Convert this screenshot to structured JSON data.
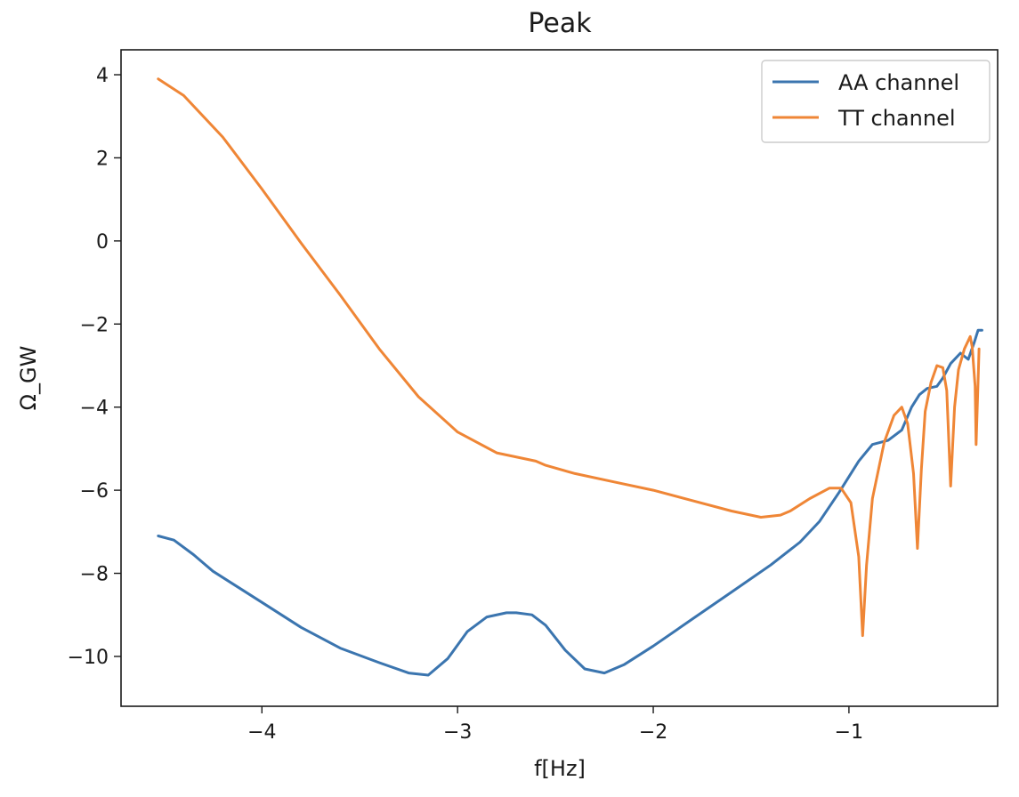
{
  "chart_data": {
    "type": "line",
    "title": "Peak",
    "xlabel": "f[Hz]",
    "ylabel": "Ω_GW",
    "xlim": [
      -4.72,
      -0.24
    ],
    "ylim": [
      -11.2,
      4.6
    ],
    "xticks": [
      -4,
      -3,
      -2,
      -1
    ],
    "xtick_labels": [
      "−4",
      "−3",
      "−2",
      "−1"
    ],
    "yticks": [
      4,
      2,
      0,
      -2,
      -4,
      -6,
      -8,
      -10
    ],
    "ytick_labels": [
      "4",
      "2",
      "0",
      "−2",
      "−4",
      "−6",
      "−8",
      "−10"
    ],
    "grid": false,
    "legend_position": "top-right",
    "series": [
      {
        "name": "AA channel",
        "color": "#3b75af",
        "x": [
          -4.53,
          -4.45,
          -4.35,
          -4.25,
          -4.1,
          -4.0,
          -3.8,
          -3.6,
          -3.4,
          -3.25,
          -3.15,
          -3.05,
          -2.95,
          -2.85,
          -2.75,
          -2.7,
          -2.62,
          -2.55,
          -2.45,
          -2.35,
          -2.25,
          -2.15,
          -2.0,
          -1.8,
          -1.6,
          -1.4,
          -1.25,
          -1.15,
          -1.05,
          -0.95,
          -0.88,
          -0.8,
          -0.73,
          -0.68,
          -0.64,
          -0.6,
          -0.55,
          -0.52,
          -0.48,
          -0.43,
          -0.39,
          -0.36,
          -0.34,
          -0.32
        ],
        "y": [
          -7.1,
          -7.2,
          -7.55,
          -7.95,
          -8.4,
          -8.7,
          -9.3,
          -9.8,
          -10.15,
          -10.4,
          -10.45,
          -10.05,
          -9.4,
          -9.05,
          -8.95,
          -8.95,
          -9.0,
          -9.25,
          -9.85,
          -10.3,
          -10.4,
          -10.2,
          -9.75,
          -9.1,
          -8.45,
          -7.8,
          -7.25,
          -6.75,
          -6.05,
          -5.3,
          -4.9,
          -4.8,
          -4.55,
          -4.0,
          -3.7,
          -3.55,
          -3.5,
          -3.3,
          -2.95,
          -2.7,
          -2.85,
          -2.45,
          -2.15,
          -2.15
        ]
      },
      {
        "name": "TT channel",
        "color": "#ef8636",
        "x": [
          -4.53,
          -4.4,
          -4.2,
          -4.0,
          -3.8,
          -3.6,
          -3.4,
          -3.2,
          -3.0,
          -2.8,
          -2.6,
          -2.55,
          -2.4,
          -2.2,
          -2.0,
          -1.8,
          -1.6,
          -1.45,
          -1.35,
          -1.3,
          -1.2,
          -1.1,
          -1.04,
          -0.99,
          -0.95,
          -0.93,
          -0.91,
          -0.88,
          -0.82,
          -0.77,
          -0.73,
          -0.7,
          -0.67,
          -0.65,
          -0.63,
          -0.61,
          -0.58,
          -0.55,
          -0.52,
          -0.5,
          -0.48,
          -0.46,
          -0.44,
          -0.41,
          -0.38,
          -0.37,
          -0.355,
          -0.35,
          -0.34,
          -0.335
        ],
        "y": [
          3.9,
          3.5,
          2.5,
          1.25,
          -0.05,
          -1.3,
          -2.6,
          -3.75,
          -4.6,
          -5.1,
          -5.3,
          -5.4,
          -5.6,
          -5.8,
          -6.0,
          -6.25,
          -6.5,
          -6.65,
          -6.6,
          -6.5,
          -6.2,
          -5.95,
          -5.95,
          -6.3,
          -7.6,
          -9.5,
          -7.8,
          -6.2,
          -4.85,
          -4.2,
          -4.0,
          -4.4,
          -5.6,
          -7.4,
          -5.5,
          -4.1,
          -3.4,
          -3.0,
          -3.05,
          -3.6,
          -5.9,
          -4.0,
          -3.1,
          -2.6,
          -2.3,
          -2.55,
          -3.5,
          -4.9,
          -3.4,
          -2.6
        ]
      }
    ]
  }
}
